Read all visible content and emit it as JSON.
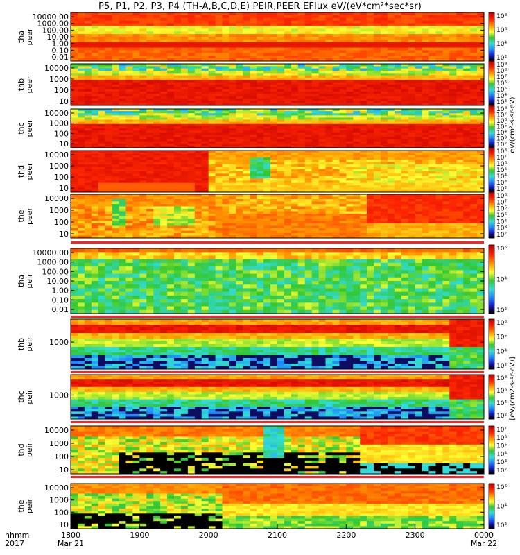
{
  "title": "P5, P1, P2, P3, P4 (TH-A,B,C,D,E) PEIR,PEER EFlux eV/(eV*cm²*sec*sr)",
  "chart_data": {
    "type": "heatmap",
    "title": "P5, P1, P2, P3, P4 (TH-A,B,C,D,E) PEIR,PEER EFlux eV/(eV*cm²*sec*sr)",
    "x_unit_label": "hhmm",
    "x_year_label": "2017",
    "xlim": [
      1800,
      2400
    ],
    "x_ticks": [
      {
        "time": "1800",
        "date": "Mar 21"
      },
      {
        "time": "1900",
        "date": ""
      },
      {
        "time": "2000",
        "date": ""
      },
      {
        "time": "2100",
        "date": ""
      },
      {
        "time": "2200",
        "date": ""
      },
      {
        "time": "2300",
        "date": ""
      },
      {
        "time": "0000",
        "date": "Mar 22"
      }
    ],
    "colorbar_unit_peer": "eV/(cm²-s-sr-eV)",
    "colorbar_unit_peir": "[eV/(cm2-s-sr-eV)]",
    "colormap": [
      "#000000",
      "#1b1bd6",
      "#1f8fff",
      "#33dddd",
      "#33cc33",
      "#ffff33",
      "#ff9900",
      "#ff2200",
      "#cc0000"
    ],
    "panels": [
      {
        "name1": "tha",
        "name2": "peer",
        "y_ticks": [
          "10000.00",
          "1000.00",
          "100.00",
          "10.00",
          "1.00",
          "0.10",
          "0.01"
        ],
        "cb_ticks": [
          "10⁸",
          "10⁶",
          "10⁴",
          "10²"
        ],
        "pattern": "tha_peer"
      },
      {
        "name1": "thb",
        "name2": "peer",
        "y_ticks": [
          "10000",
          "1000",
          "100",
          "10"
        ],
        "cb_ticks": [
          "10⁹",
          "10⁸",
          "10⁷",
          "10⁶",
          "10⁵",
          "10⁴",
          "10³"
        ],
        "pattern": "band"
      },
      {
        "name1": "thc",
        "name2": "peer",
        "y_ticks": [
          "10000",
          "1000",
          "100",
          "10"
        ],
        "cb_ticks": [
          "10⁸",
          "10⁷",
          "10⁶",
          "10⁵",
          "10⁴",
          "10³",
          "10²"
        ],
        "pattern": "band"
      },
      {
        "name1": "thd",
        "name2": "peer",
        "y_ticks": [
          "10000",
          "1000",
          "100",
          "10"
        ],
        "cb_ticks": [
          "10⁸",
          "10⁷",
          "10⁶",
          "10⁵",
          "10⁴",
          "10³",
          "10²"
        ],
        "pattern": "thd_peer"
      },
      {
        "name1": "the",
        "name2": "peer",
        "y_ticks": [
          "10000",
          "1000",
          "100",
          "10"
        ],
        "cb_ticks": [
          "10⁸",
          "10⁷",
          "10⁶",
          "10⁵",
          "10⁴",
          "10³",
          "10²"
        ],
        "pattern": "the_peer"
      },
      {
        "name1": "tha",
        "name2": "peir",
        "y_ticks": [
          "10000.00",
          "1000.00",
          "100.00",
          "10.00",
          "1.00",
          "0.10",
          "0.01"
        ],
        "cb_ticks": [
          "10⁶",
          "10⁴",
          "10²"
        ],
        "pattern": "tha_peir"
      },
      {
        "name1": "thb",
        "name2": "peir",
        "y_ticks": [
          "1000"
        ],
        "cb_ticks": [
          "10⁸",
          "10⁶",
          "10⁴",
          "10²"
        ],
        "pattern": "ion_b"
      },
      {
        "name1": "thc",
        "name2": "peir",
        "y_ticks": [
          "1000"
        ],
        "cb_ticks": [
          "10⁸",
          "10⁶",
          "10⁴",
          "10²"
        ],
        "pattern": "ion_b"
      },
      {
        "name1": "thd",
        "name2": "peir",
        "y_ticks": [
          "10000",
          "1000",
          "100",
          "10"
        ],
        "cb_ticks": [
          "10⁷",
          "10⁶",
          "10⁵",
          "10⁴",
          "10³",
          "10²"
        ],
        "pattern": "thd_peir"
      },
      {
        "name1": "the",
        "name2": "peir",
        "y_ticks": [
          "10000",
          "1000",
          "100",
          "10"
        ],
        "cb_ticks": [
          "10⁶",
          "10⁴",
          "10²"
        ],
        "pattern": "the_peir"
      }
    ]
  }
}
